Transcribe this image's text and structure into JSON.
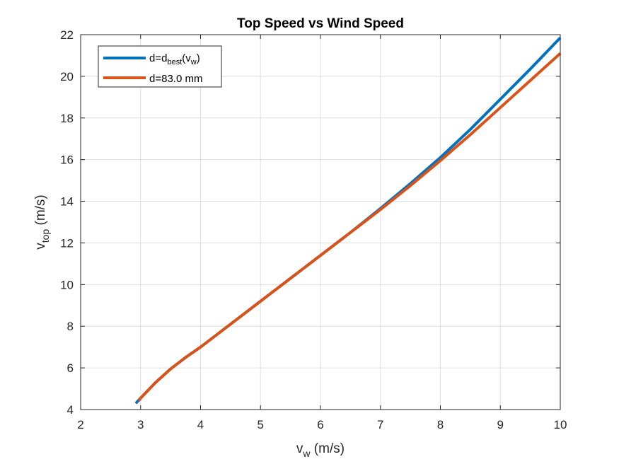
{
  "chart_data": {
    "type": "line",
    "title": "Top Speed vs Wind Speed",
    "xlabel": {
      "base": "v",
      "sub": "w",
      "rest": " (m/s)"
    },
    "ylabel": {
      "base": "v",
      "sub": "top",
      "rest": " (m/s)"
    },
    "xlim": [
      2,
      10
    ],
    "ylim": [
      4,
      22
    ],
    "xticks": [
      "2",
      "3",
      "4",
      "5",
      "6",
      "7",
      "8",
      "9",
      "10"
    ],
    "yticks": [
      "4",
      "6",
      "8",
      "10",
      "12",
      "14",
      "16",
      "18",
      "20",
      "22"
    ],
    "grid": true,
    "legend_position": "top-left",
    "series": [
      {
        "legend": {
          "base": "d=d",
          "sub": "best",
          "rest": "(v",
          "sub2": "w",
          "end": ")"
        },
        "color": "#0072BD",
        "x": [
          2.92,
          3.0,
          3.25,
          3.5,
          3.75,
          4.0,
          4.5,
          5.0,
          5.5,
          6.0,
          6.5,
          7.0,
          7.5,
          8.0,
          8.5,
          9.0,
          9.5,
          10.0
        ],
        "y": [
          4.3,
          4.55,
          5.3,
          5.95,
          6.5,
          7.0,
          8.1,
          9.2,
          10.3,
          11.4,
          12.5,
          13.65,
          14.85,
          16.1,
          17.45,
          18.9,
          20.35,
          21.85
        ]
      },
      {
        "legend": {
          "base": "d=83.0 mm"
        },
        "color": "#D95319",
        "x": [
          2.97,
          3.0,
          3.25,
          3.5,
          3.75,
          4.0,
          4.5,
          5.0,
          5.5,
          6.0,
          6.5,
          7.0,
          7.5,
          8.0,
          8.5,
          9.0,
          9.5,
          10.0
        ],
        "y": [
          4.42,
          4.55,
          5.3,
          5.95,
          6.5,
          7.0,
          8.1,
          9.2,
          10.3,
          11.4,
          12.5,
          13.6,
          14.75,
          15.95,
          17.2,
          18.5,
          19.8,
          21.1
        ]
      }
    ]
  }
}
